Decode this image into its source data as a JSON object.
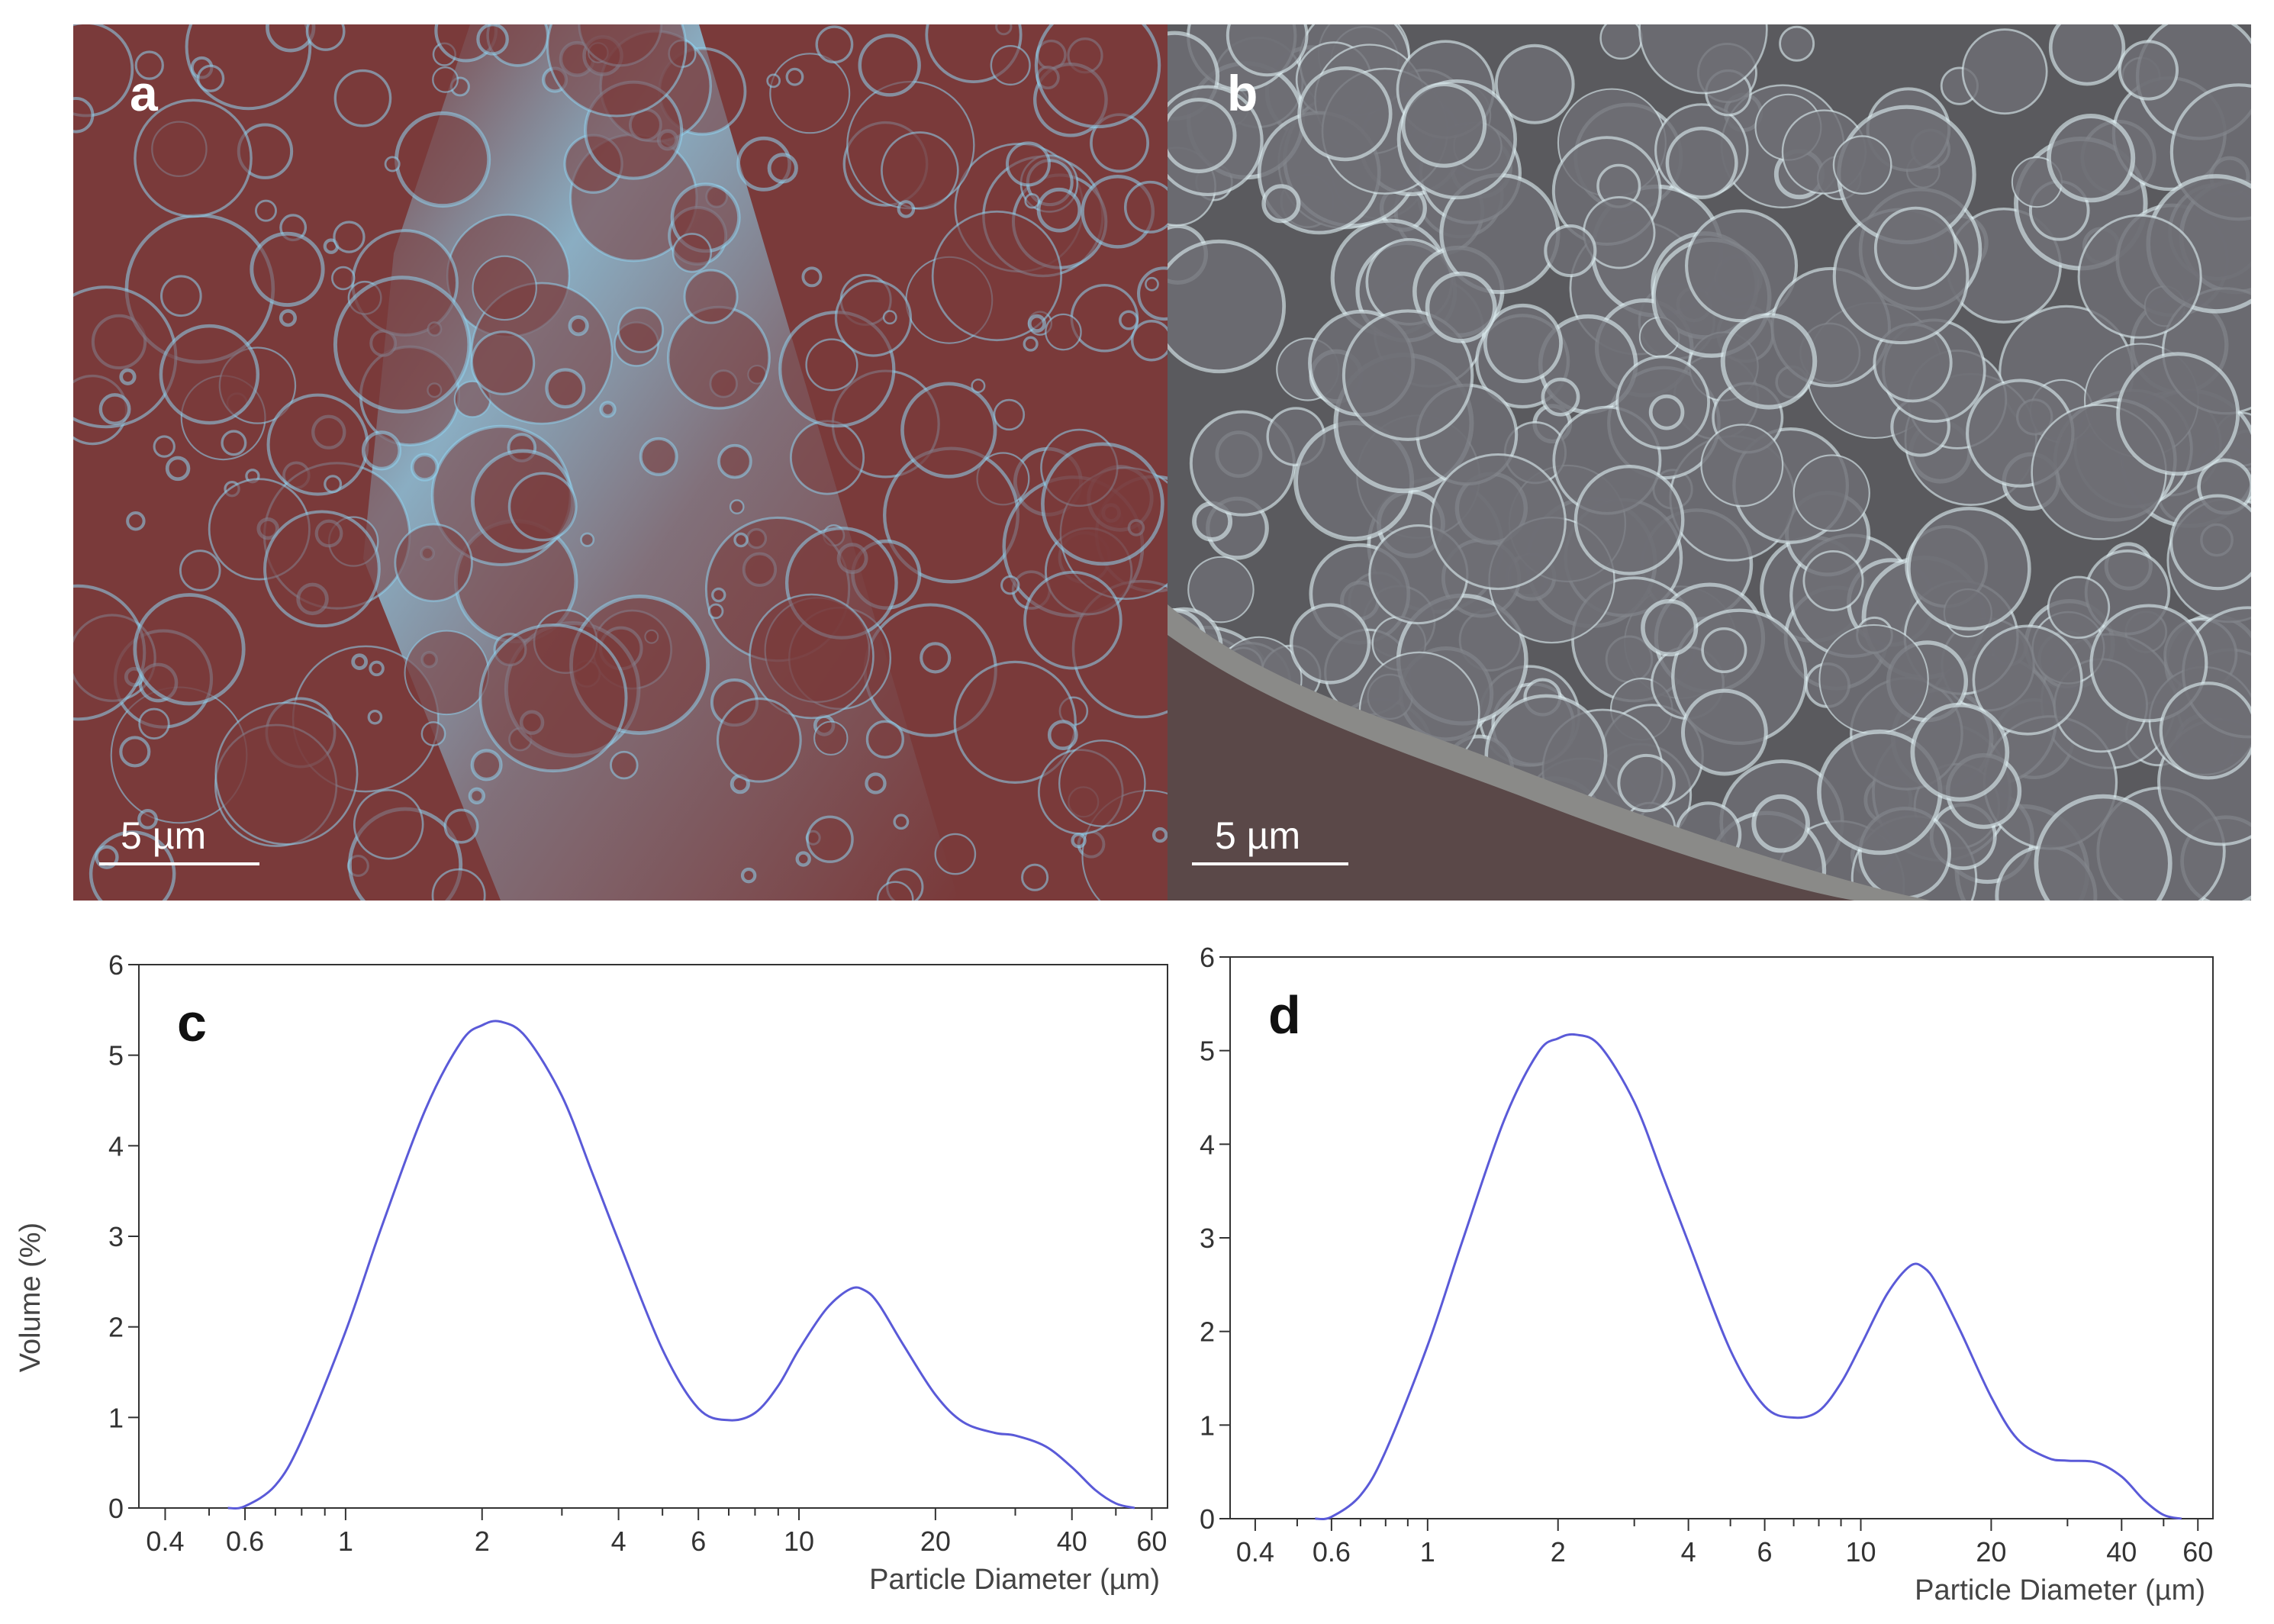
{
  "micrographs": [
    {
      "letter": "a",
      "scale_label": "5 µm",
      "background_color": "#7a3a3a",
      "network_color": "#8fd4f0"
    },
    {
      "letter": "b",
      "scale_label": "5 µm",
      "background_color": "#5a5a5e",
      "network_color": "#dff0f4"
    }
  ],
  "chart_data": [
    {
      "type": "line",
      "panel_label": "c",
      "xlabel": "Particle Diameter (µm)",
      "ylabel": "Volume (%)",
      "x_scale": "log",
      "xlim": [
        0.35,
        65
      ],
      "ylim": [
        0,
        6
      ],
      "x_ticks": [
        "0.4",
        "0.6",
        "1",
        "2",
        "4",
        "6",
        "10",
        "20",
        "40",
        "60"
      ],
      "y_ticks": [
        "0",
        "1",
        "2",
        "3",
        "4",
        "5",
        "6"
      ],
      "line_color": "#5a5ad8",
      "series": [
        {
          "x": [
            0.55,
            0.6,
            0.7,
            0.8,
            1.0,
            1.2,
            1.5,
            1.8,
            2.0,
            2.2,
            2.5,
            3.0,
            3.5,
            4.0,
            5.0,
            6.0,
            7.0,
            8.0,
            9.0,
            10.0,
            11.5,
            13.0,
            14.0,
            15.0,
            17.0,
            20.0,
            23.0,
            27.0,
            30.0,
            35.0,
            40.0,
            45.0,
            50.0,
            55.0
          ],
          "y": [
            0.0,
            0.02,
            0.25,
            0.75,
            1.95,
            3.1,
            4.4,
            5.15,
            5.33,
            5.37,
            5.2,
            4.55,
            3.7,
            2.95,
            1.75,
            1.1,
            0.97,
            1.05,
            1.35,
            1.75,
            2.2,
            2.42,
            2.4,
            2.25,
            1.8,
            1.25,
            0.95,
            0.83,
            0.8,
            0.68,
            0.45,
            0.2,
            0.05,
            0.0
          ]
        }
      ]
    },
    {
      "type": "line",
      "panel_label": "d",
      "xlabel": "Particle Diameter (µm)",
      "ylabel": "",
      "x_scale": "log",
      "xlim": [
        0.35,
        65
      ],
      "ylim": [
        0,
        6
      ],
      "x_ticks": [
        "0.4",
        "0.6",
        "1",
        "2",
        "4",
        "6",
        "10",
        "20",
        "40",
        "60"
      ],
      "y_ticks": [
        "0",
        "1",
        "2",
        "3",
        "4",
        "5",
        "6"
      ],
      "line_color": "#5a5ad8",
      "series": [
        {
          "x": [
            0.55,
            0.6,
            0.7,
            0.8,
            1.0,
            1.2,
            1.5,
            1.8,
            2.0,
            2.2,
            2.5,
            3.0,
            3.5,
            4.0,
            5.0,
            6.0,
            7.0,
            8.0,
            9.0,
            10.0,
            11.5,
            13.0,
            14.0,
            15.0,
            17.0,
            20.0,
            23.0,
            27.0,
            30.0,
            35.0,
            40.0,
            45.0,
            50.0,
            55.0
          ],
          "y": [
            0.0,
            0.02,
            0.25,
            0.72,
            1.85,
            2.95,
            4.25,
            4.98,
            5.13,
            5.17,
            5.05,
            4.45,
            3.65,
            2.95,
            1.8,
            1.2,
            1.08,
            1.15,
            1.45,
            1.85,
            2.4,
            2.7,
            2.68,
            2.5,
            2.0,
            1.3,
            0.85,
            0.65,
            0.62,
            0.6,
            0.45,
            0.2,
            0.04,
            0.0
          ]
        }
      ]
    }
  ]
}
